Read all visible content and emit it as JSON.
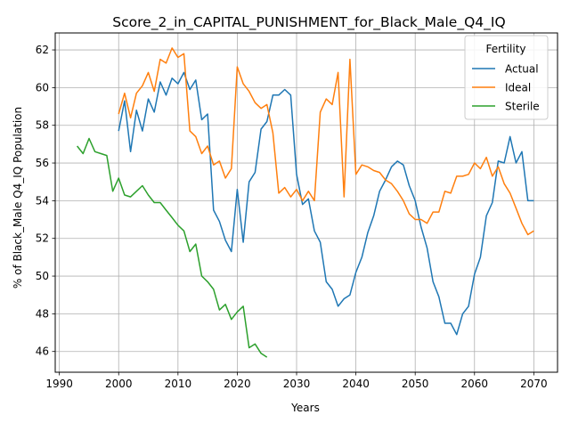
{
  "chart_data": {
    "type": "line",
    "title": "Score_2_in_CAPITAL_PUNISHMENT_for_Black_Male_Q4_IQ",
    "xlabel": "Years",
    "ylabel": "% of Black_Male Q4_IQ Population",
    "xlim": [
      1989.3,
      2074.0
    ],
    "ylim": [
      44.9,
      62.9
    ],
    "xticks": [
      1990,
      2000,
      2010,
      2020,
      2030,
      2040,
      2050,
      2060,
      2070
    ],
    "yticks": [
      46,
      48,
      50,
      52,
      54,
      56,
      58,
      60,
      62
    ],
    "grid": true,
    "legend": {
      "title": "Fertility",
      "position": "top-right"
    },
    "series": [
      {
        "name": "Actual",
        "color": "#1f77b4",
        "x": [
          2000,
          2001,
          2002,
          2003,
          2004,
          2005,
          2006,
          2007,
          2008,
          2009,
          2010,
          2011,
          2012,
          2013,
          2014,
          2015,
          2016,
          2017,
          2018,
          2019,
          2020,
          2021,
          2022,
          2023,
          2024,
          2025,
          2026,
          2027,
          2028,
          2029,
          2030,
          2031,
          2032,
          2033,
          2034,
          2035,
          2036,
          2037,
          2038,
          2039,
          2040,
          2041,
          2042,
          2043,
          2044,
          2045,
          2046,
          2047,
          2048,
          2049,
          2050,
          2051,
          2052,
          2053,
          2054,
          2055,
          2056,
          2057,
          2058,
          2059,
          2060,
          2061,
          2062,
          2063,
          2064,
          2065,
          2066,
          2067,
          2068,
          2069,
          2070
        ],
        "y": [
          57.7,
          59.3,
          56.6,
          58.8,
          57.7,
          59.4,
          58.7,
          60.3,
          59.6,
          60.5,
          60.2,
          60.8,
          59.9,
          60.4,
          58.3,
          58.6,
          53.5,
          52.9,
          51.9,
          51.3,
          54.6,
          51.8,
          55.0,
          55.5,
          57.8,
          58.2,
          59.6,
          59.6,
          59.9,
          59.6,
          55.4,
          53.8,
          54.1,
          52.4,
          51.8,
          49.7,
          49.3,
          48.4,
          48.8,
          49.0,
          50.2,
          51.0,
          52.3,
          53.2,
          54.5,
          55.1,
          55.8,
          56.1,
          55.9,
          54.8,
          54.0,
          52.6,
          51.5,
          49.7,
          48.9,
          47.5,
          47.5,
          46.9,
          48.0,
          48.4,
          50.1,
          51.0,
          53.2,
          53.9,
          56.1,
          56.0,
          57.4,
          56.0,
          56.6,
          54.0,
          54.0
        ]
      },
      {
        "name": "Ideal",
        "color": "#ff7f0e",
        "x": [
          2000,
          2001,
          2002,
          2003,
          2004,
          2005,
          2006,
          2007,
          2008,
          2009,
          2010,
          2011,
          2012,
          2013,
          2014,
          2015,
          2016,
          2017,
          2018,
          2019,
          2020,
          2021,
          2022,
          2023,
          2024,
          2025,
          2026,
          2027,
          2028,
          2029,
          2030,
          2031,
          2032,
          2033,
          2034,
          2035,
          2036,
          2037,
          2038,
          2039,
          2040,
          2041,
          2042,
          2043,
          2044,
          2045,
          2046,
          2047,
          2048,
          2049,
          2050,
          2051,
          2052,
          2053,
          2054,
          2055,
          2056,
          2057,
          2058,
          2059,
          2060,
          2061,
          2062,
          2063,
          2064,
          2065,
          2066,
          2067,
          2068,
          2069,
          2070
        ],
        "y": [
          58.6,
          59.7,
          58.4,
          59.7,
          60.1,
          60.8,
          59.8,
          61.5,
          61.3,
          62.1,
          61.6,
          61.8,
          57.7,
          57.4,
          56.5,
          56.9,
          55.9,
          56.1,
          55.2,
          55.7,
          61.1,
          60.2,
          59.8,
          59.2,
          58.9,
          59.1,
          57.6,
          54.4,
          54.7,
          54.2,
          54.6,
          54.0,
          54.5,
          54.0,
          58.7,
          59.4,
          59.1,
          60.8,
          54.2,
          61.5,
          55.4,
          55.9,
          55.8,
          55.6,
          55.5,
          55.1,
          54.9,
          54.5,
          54.0,
          53.3,
          53.0,
          53.0,
          52.8,
          53.4,
          53.4,
          54.5,
          54.4,
          55.3,
          55.3,
          55.4,
          56.0,
          55.7,
          56.3,
          55.3,
          55.8,
          54.9,
          54.4,
          53.6,
          52.8,
          52.2,
          52.4
        ]
      },
      {
        "name": "Sterile",
        "color": "#2ca02c",
        "x": [
          1993,
          1994,
          1995,
          1996,
          1997,
          1998,
          1999,
          2000,
          2001,
          2002,
          2003,
          2004,
          2005,
          2006,
          2007,
          2008,
          2009,
          2010,
          2011,
          2012,
          2013,
          2014,
          2015,
          2016,
          2017,
          2018,
          2019,
          2020,
          2021,
          2022,
          2023,
          2024,
          2025
        ],
        "y": [
          56.9,
          56.5,
          57.3,
          56.6,
          56.5,
          56.4,
          54.5,
          55.2,
          54.3,
          54.2,
          54.5,
          54.8,
          54.3,
          53.9,
          53.9,
          53.5,
          53.1,
          52.7,
          52.4,
          51.3,
          51.7,
          50.0,
          49.7,
          49.3,
          48.2,
          48.5,
          47.7,
          48.1,
          48.4,
          46.2,
          46.4,
          45.9,
          45.7
        ]
      }
    ]
  }
}
